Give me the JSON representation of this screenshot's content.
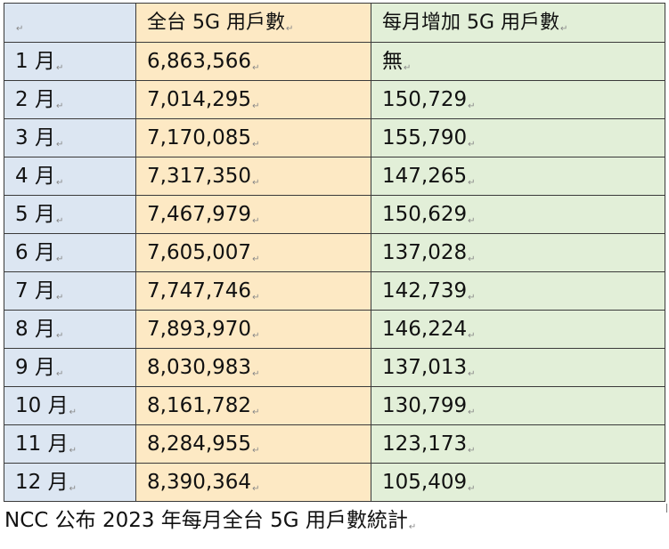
{
  "header_mark": "↵",
  "table": {
    "headers": [
      "",
      "全台 5G 用戶數",
      "每月增加 5G 用戶數"
    ],
    "rows": [
      {
        "month": "1 月",
        "total": "6,863,566",
        "increase": "無"
      },
      {
        "month": "2 月",
        "total": "7,014,295",
        "increase": "150,729"
      },
      {
        "month": "3 月",
        "total": "7,170,085",
        "increase": "155,790"
      },
      {
        "month": "4 月",
        "total": "7,317,350",
        "increase": "147,265"
      },
      {
        "month": "5 月",
        "total": "7,467,979",
        "increase": "150,629"
      },
      {
        "month": "6 月",
        "total": "7,605,007",
        "increase": "137,028"
      },
      {
        "month": "7 月",
        "total": "7,747,746",
        "increase": "142,739"
      },
      {
        "month": "8 月",
        "total": "7,893,970",
        "increase": "146,224"
      },
      {
        "month": "9 月",
        "total": "8,030,983",
        "increase": "137,013"
      },
      {
        "month": "10 月",
        "total": "8,161,782",
        "increase": "130,799"
      },
      {
        "month": "11 月",
        "total": "8,284,955",
        "increase": "123,173"
      },
      {
        "month": "12 月",
        "total": "8,390,364",
        "increase": "105,409"
      }
    ]
  },
  "caption": "NCC 公布 2023 年每月全台 5G 用戶數統計",
  "colors": {
    "month_column": "#dce6f2",
    "total_column": "#fde9c4",
    "increase_column": "#e2efd8",
    "border": "#3a3a3a"
  }
}
